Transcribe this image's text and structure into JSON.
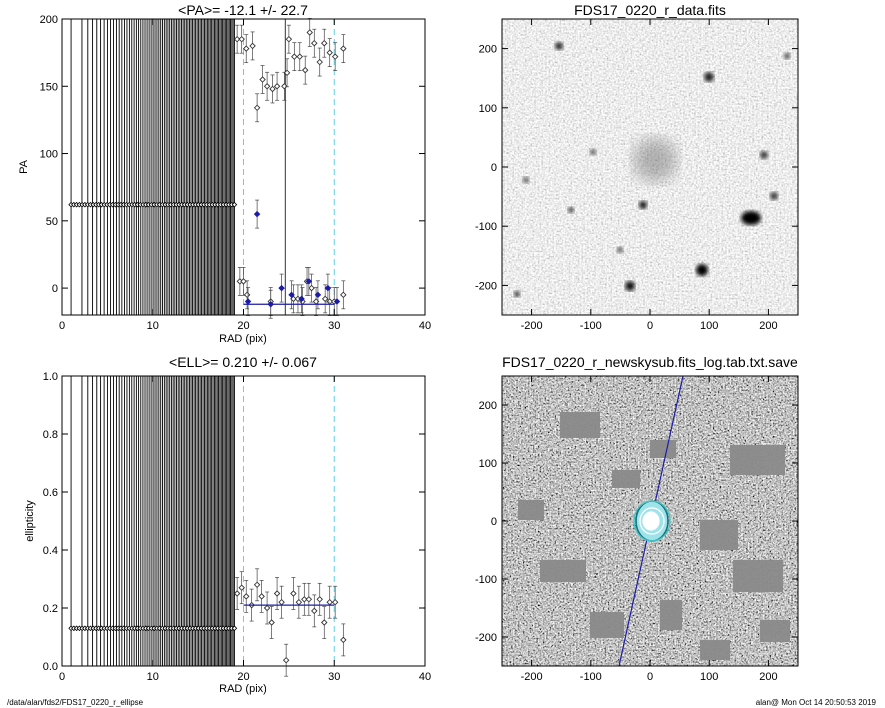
{
  "footer": {
    "left": "/data/alan/fds2/FDS17_0220_r_ellipse",
    "right": "alan@  Mon Oct 14 20:50:53 2019"
  },
  "colors": {
    "axes": "#000000",
    "marker": "#333333",
    "highlight": "#1c1ca8",
    "dashed": "#5fd3e6",
    "contour": "#40c8c8"
  },
  "chart_data": [
    {
      "type": "scatter",
      "title": "<PA>= -12.1 +/-  22.7",
      "xlabel": "RAD (pix)",
      "ylabel": "PA",
      "xlim": [
        0,
        40
      ],
      "ylim": [
        -20,
        200
      ],
      "xticks": [
        "0",
        "10",
        "20",
        "30",
        "40"
      ],
      "yticks": [
        "0",
        "50",
        "100",
        "150",
        "200"
      ],
      "inner_constant": 62,
      "inner_x_range": [
        1,
        19
      ],
      "dashed_x": [
        20,
        30
      ],
      "mean_line": {
        "y": -12,
        "x": [
          20,
          30
        ]
      },
      "points": [
        [
          19.3,
          185
        ],
        [
          19.8,
          185
        ],
        [
          20.3,
          178
        ],
        [
          21.0,
          180
        ],
        [
          21.5,
          134
        ],
        [
          22.1,
          155
        ],
        [
          22.6,
          150
        ],
        [
          23.2,
          148
        ],
        [
          23.7,
          150
        ],
        [
          24.5,
          150
        ],
        [
          25.0,
          185
        ],
        [
          25.6,
          172
        ],
        [
          26.2,
          172
        ],
        [
          26.8,
          162
        ],
        [
          27.3,
          190
        ],
        [
          27.8,
          182
        ],
        [
          28.4,
          168
        ],
        [
          28.9,
          182
        ],
        [
          29.5,
          175
        ],
        [
          30.1,
          172
        ],
        [
          31.0,
          178
        ],
        [
          19.6,
          5
        ],
        [
          20.0,
          5
        ],
        [
          20.4,
          -5
        ],
        [
          24.8,
          160
        ],
        [
          23.0,
          -10
        ],
        [
          25.5,
          -8
        ],
        [
          26.0,
          -8
        ],
        [
          26.5,
          -10
        ],
        [
          27.0,
          5
        ],
        [
          27.5,
          0
        ],
        [
          28.0,
          -10
        ],
        [
          29.0,
          -8
        ],
        [
          29.5,
          -10
        ],
        [
          30.0,
          -10
        ],
        [
          31.0,
          -5
        ]
      ],
      "highlight_points": [
        [
          21.5,
          55
        ],
        [
          20.5,
          -10
        ],
        [
          23.0,
          -12
        ],
        [
          24.2,
          0
        ],
        [
          25.3,
          -5
        ],
        [
          26.4,
          -8
        ],
        [
          27.2,
          5
        ],
        [
          28.2,
          -5
        ],
        [
          29.3,
          0
        ],
        [
          30.3,
          -10
        ]
      ]
    },
    {
      "type": "scatter",
      "title": "<ELL>= 0.210 +/-  0.067",
      "xlabel": "RAD (pix)",
      "ylabel": "ellipticity",
      "xlim": [
        0,
        40
      ],
      "ylim": [
        0,
        1
      ],
      "xticks": [
        "0",
        "10",
        "20",
        "30",
        "40"
      ],
      "yticks": [
        "0.0",
        "0.2",
        "0.4",
        "0.6",
        "0.8",
        "1.0"
      ],
      "inner_constant": 0.13,
      "inner_x_range": [
        1,
        19
      ],
      "dashed_x": [
        20,
        30
      ],
      "mean_line": {
        "y": 0.21,
        "x": [
          20,
          30
        ]
      },
      "points": [
        [
          19.3,
          0.25
        ],
        [
          19.8,
          0.27
        ],
        [
          20.3,
          0.24
        ],
        [
          20.9,
          0.21
        ],
        [
          21.5,
          0.28
        ],
        [
          22.0,
          0.24
        ],
        [
          22.6,
          0.2
        ],
        [
          23.1,
          0.15
        ],
        [
          23.7,
          0.25
        ],
        [
          24.2,
          0.22
        ],
        [
          24.7,
          0.02
        ],
        [
          25.5,
          0.25
        ],
        [
          26.1,
          0.22
        ],
        [
          26.7,
          0.23
        ],
        [
          27.2,
          0.23
        ],
        [
          27.8,
          0.19
        ],
        [
          28.4,
          0.23
        ],
        [
          28.9,
          0.15
        ],
        [
          29.5,
          0.22
        ],
        [
          30.1,
          0.22
        ],
        [
          31.0,
          0.09
        ]
      ]
    }
  ],
  "images": [
    {
      "title": "FDS17_0220_r_data.fits",
      "xticks": [
        "-200",
        "-100",
        "0",
        "100",
        "200"
      ],
      "yticks": [
        "-200",
        "-100",
        "0",
        "100",
        "200"
      ],
      "range": [
        -250,
        250
      ]
    },
    {
      "title": "FDS17_0220_r_newskysub.fits_log.tab.txt.save",
      "xticks": [
        "-200",
        "-100",
        "0",
        "100",
        "200"
      ],
      "yticks": [
        "-200",
        "-100",
        "0",
        "100",
        "200"
      ],
      "range": [
        -250,
        250
      ]
    }
  ]
}
